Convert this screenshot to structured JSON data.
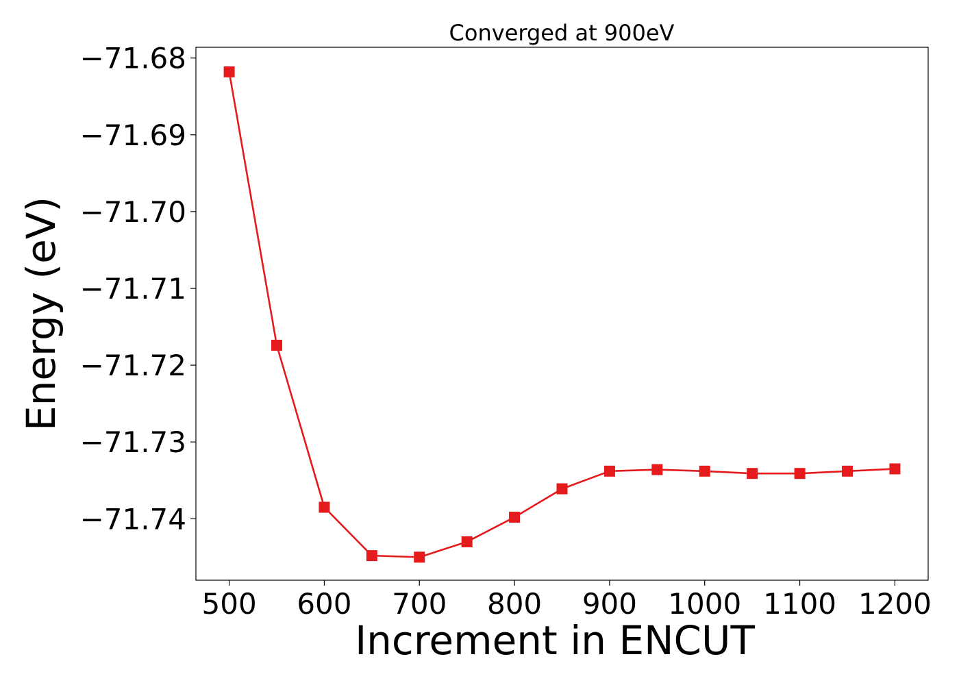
{
  "chart_data": {
    "type": "line",
    "title": "Converged at 900eV",
    "xlabel": "Increment in ENCUT",
    "ylabel": "Energy (eV)",
    "x": [
      500,
      550,
      600,
      650,
      700,
      750,
      800,
      850,
      900,
      950,
      1000,
      1050,
      1100,
      1150,
      1200
    ],
    "series": [
      {
        "values": [
          -71.6818,
          -71.7174,
          -71.7385,
          -71.7448,
          -71.745,
          -71.743,
          -71.7398,
          -71.7361,
          -71.7338,
          -71.7336,
          -71.7338,
          -71.7341,
          -71.7341,
          -71.7338,
          -71.7335
        ],
        "color": "#e41a1c",
        "marker": "square"
      }
    ],
    "xticks": [
      500,
      600,
      700,
      800,
      900,
      1000,
      1100,
      1200
    ],
    "xtick_labels": [
      "500",
      "600",
      "700",
      "800",
      "900",
      "1000",
      "1100",
      "1200"
    ],
    "yticks": [
      -71.68,
      -71.69,
      -71.7,
      -71.71,
      -71.72,
      -71.73,
      -71.74
    ],
    "ytick_labels": [
      "−71.68",
      "−71.69",
      "−71.70",
      "−71.71",
      "−71.72",
      "−71.73",
      "−71.74"
    ],
    "xlim": [
      465,
      1235
    ],
    "ylim": [
      -71.748,
      -71.6786
    ],
    "grid": false,
    "legend": "none"
  }
}
